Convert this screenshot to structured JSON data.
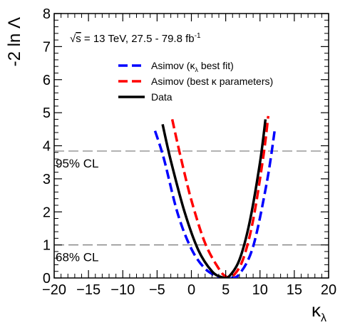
{
  "chart_data": {
    "type": "line",
    "ylabel": "-2 ln Λ",
    "xlabel_base": "κ",
    "xlabel_sub": "λ",
    "xlim": [
      -20,
      20
    ],
    "ylim": [
      0,
      8
    ],
    "x_ticks": [
      "−20",
      "−15",
      "−10",
      "−5",
      "0",
      "5",
      "10",
      "15",
      "20"
    ],
    "x_tick_values": [
      -20,
      -15,
      -10,
      -5,
      0,
      5,
      10,
      15,
      20
    ],
    "y_ticks": [
      "0",
      "1",
      "2",
      "3",
      "4",
      "5",
      "6",
      "7",
      "8"
    ],
    "y_tick_values": [
      0,
      1,
      2,
      3,
      4,
      5,
      6,
      7,
      8
    ],
    "annotation": {
      "sqrt": "√",
      "s": "s",
      "text": " = 13 TeV, 27.5 - 79.8 fb",
      "sup": "-1"
    },
    "reference_lines": [
      {
        "y": 3.84,
        "label": "95% CL"
      },
      {
        "y": 1.0,
        "label": "68% CL"
      }
    ],
    "legend_position": "top-left",
    "series": [
      {
        "name_parts": [
          "Asimov (κ",
          "λ",
          " best fit)"
        ],
        "color": "#0000ff",
        "dash": "dashed",
        "x": [
          -5.3,
          -4.0,
          -2.0,
          0.0,
          2.0,
          4.0,
          5.5,
          7.0,
          9.0,
          11.0,
          12.2
        ],
        "y": [
          4.45,
          3.6,
          1.95,
          0.88,
          0.28,
          0.03,
          0.0,
          0.12,
          0.95,
          2.9,
          4.55
        ]
      },
      {
        "name_parts": [
          "Asimov (best κ parameters)"
        ],
        "color": "#ff0000",
        "dash": "dashed",
        "x": [
          -2.8,
          -1.5,
          0.0,
          2.0,
          4.0,
          5.0,
          6.0,
          7.5,
          9.0,
          10.5,
          11.2
        ],
        "y": [
          4.8,
          3.6,
          2.35,
          1.05,
          0.28,
          0.05,
          0.05,
          0.55,
          1.75,
          3.7,
          4.9
        ]
      },
      {
        "name_parts": [
          "Data"
        ],
        "color": "#000000",
        "dash": "solid",
        "x": [
          -4.2,
          -3.0,
          -1.0,
          1.0,
          3.0,
          4.5,
          5.5,
          7.0,
          8.5,
          10.0,
          10.8
        ],
        "y": [
          4.65,
          3.55,
          2.0,
          0.85,
          0.2,
          0.02,
          0.05,
          0.55,
          1.7,
          3.5,
          4.8
        ]
      }
    ]
  }
}
